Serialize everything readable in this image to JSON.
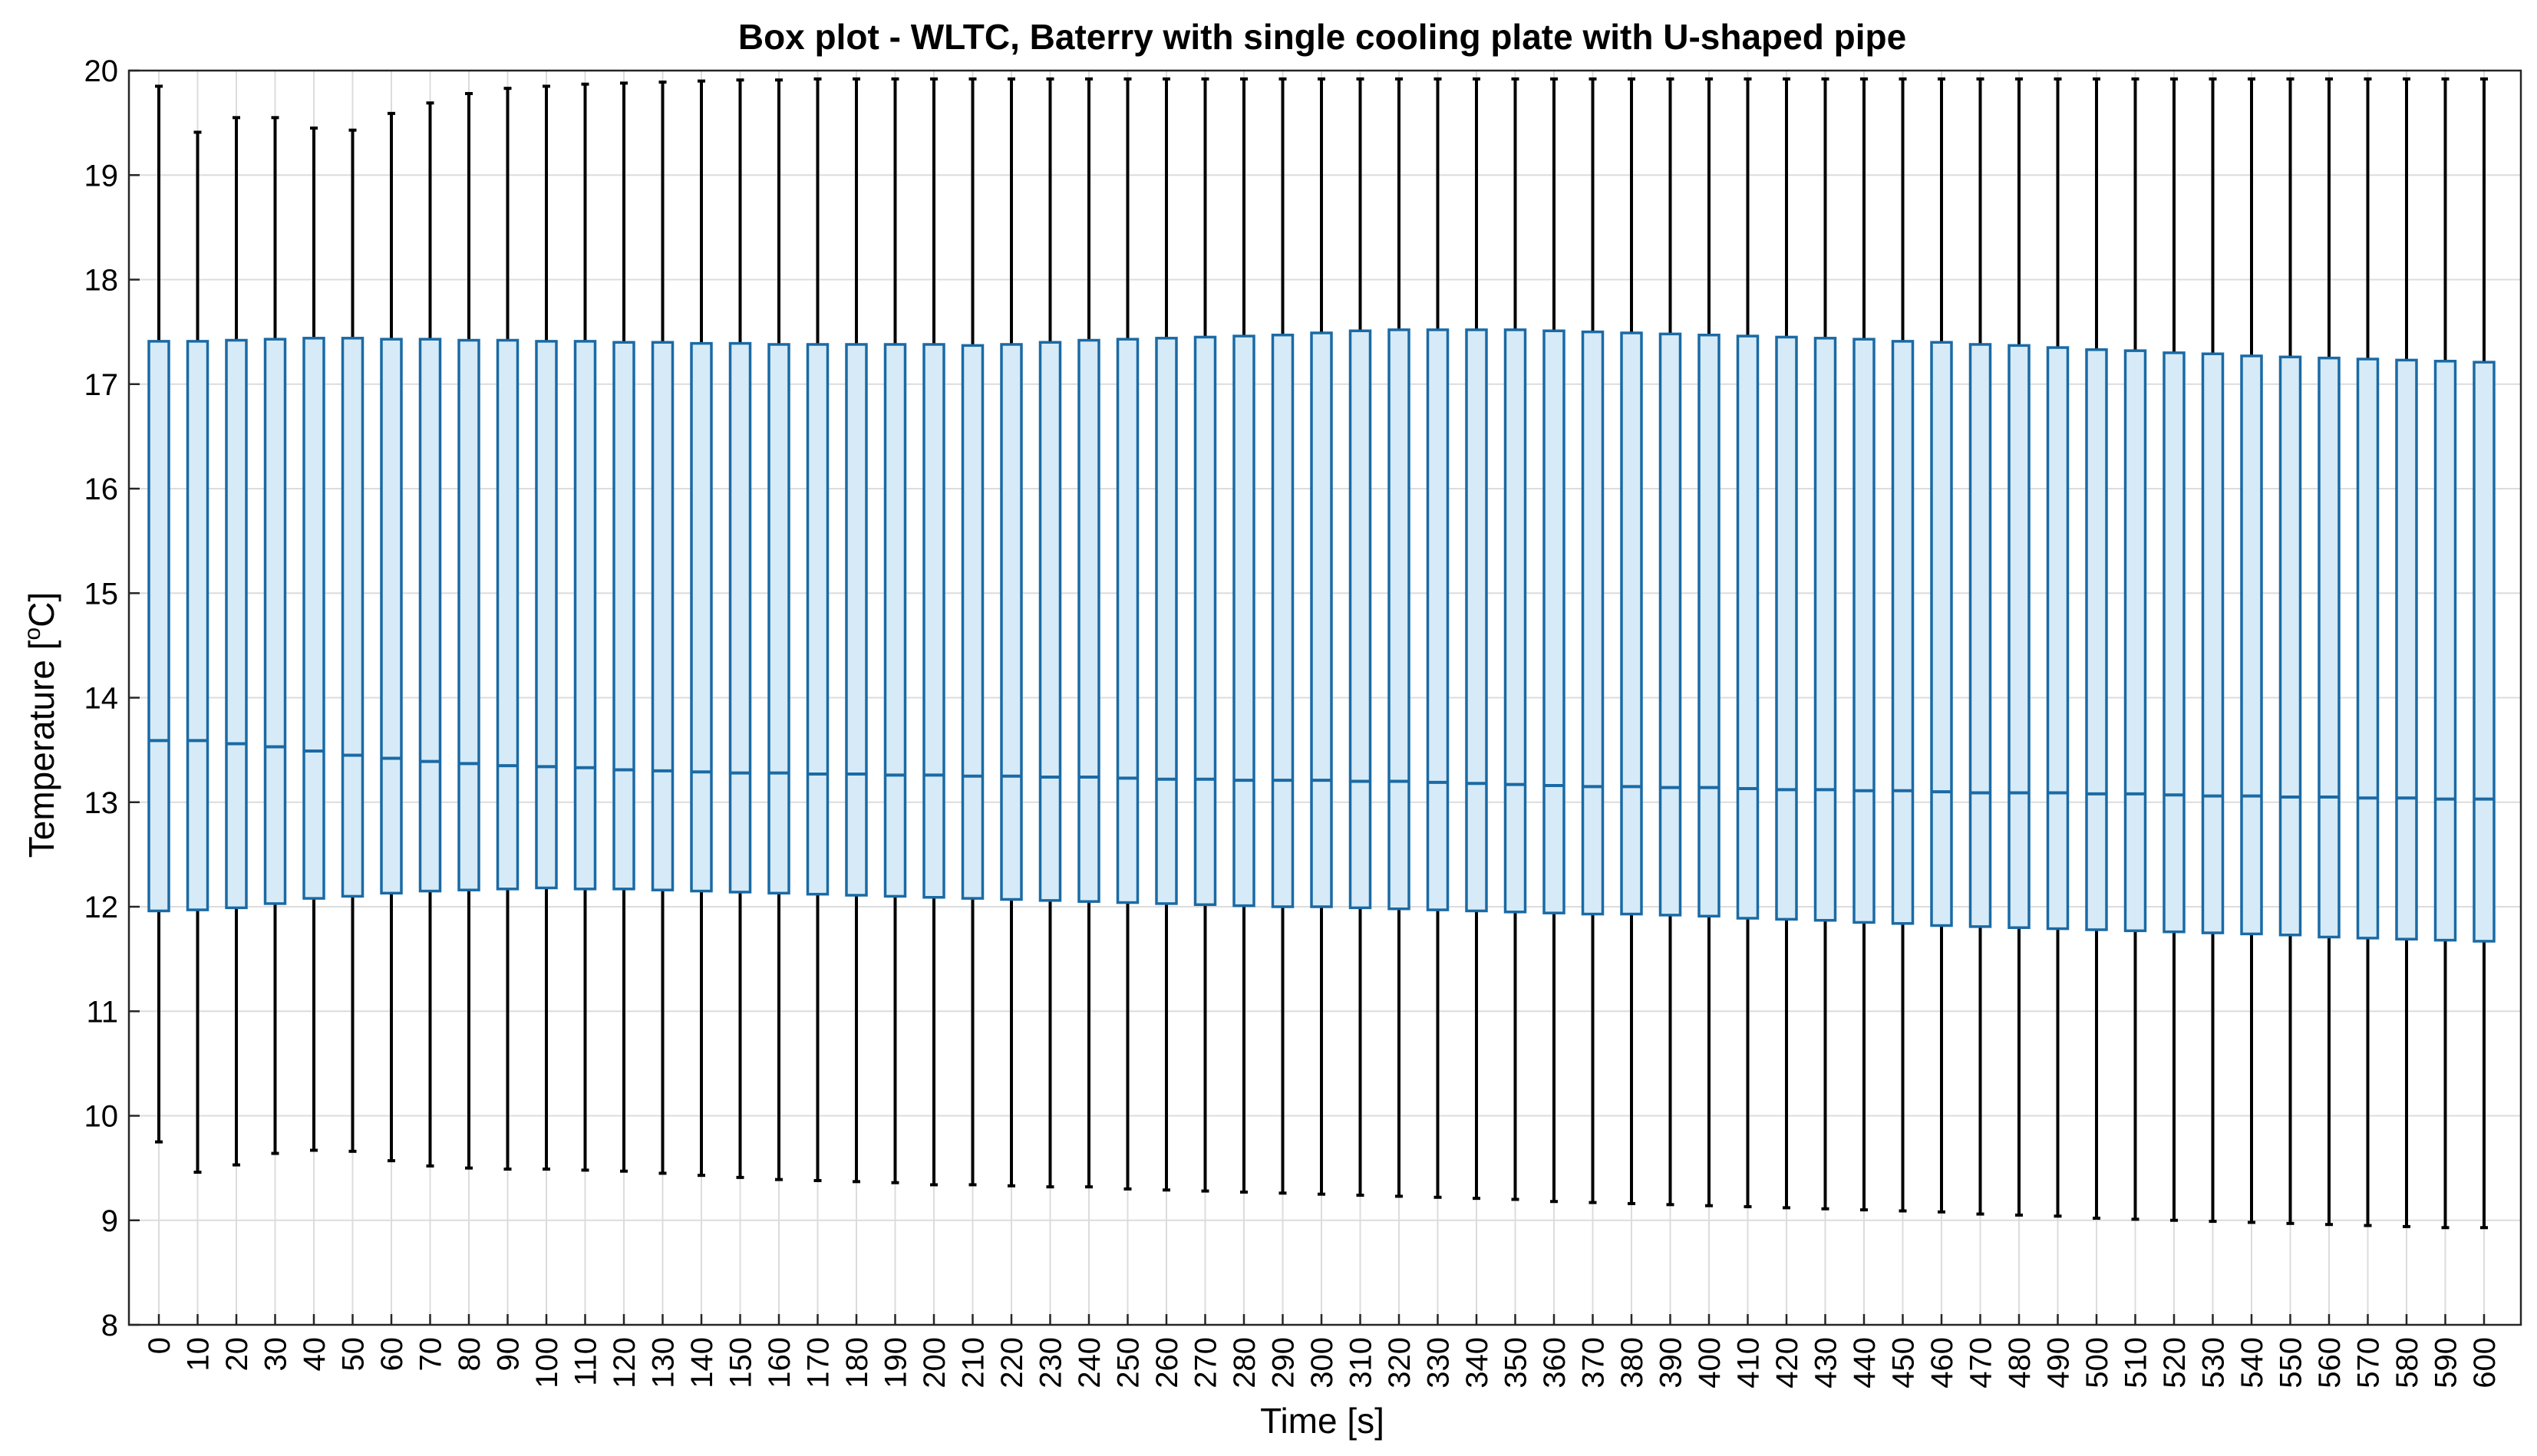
{
  "chart_data": {
    "type": "boxplot",
    "title": "Box plot - WLTC, Baterry with single cooling plate with U-shaped pipe",
    "xlabel": "Time [s]",
    "ylabel_main": "Temperature [",
    "ylabel_sup": "o",
    "ylabel_end": "C]",
    "ylim": [
      8,
      20
    ],
    "yticks": [
      8,
      9,
      10,
      11,
      12,
      13,
      14,
      15,
      16,
      17,
      18,
      19,
      20
    ],
    "grid": true,
    "colors": {
      "box_edge": "#1a6aa5",
      "box_fill": "#d6ebf7",
      "whisker": "#000000",
      "grid": "#dcdcdc"
    },
    "categories": [
      "0",
      "10",
      "20",
      "30",
      "40",
      "50",
      "60",
      "70",
      "80",
      "90",
      "100",
      "110",
      "120",
      "130",
      "140",
      "150",
      "160",
      "170",
      "180",
      "190",
      "200",
      "210",
      "220",
      "230",
      "240",
      "250",
      "260",
      "270",
      "280",
      "290",
      "300",
      "310",
      "320",
      "330",
      "340",
      "350",
      "360",
      "370",
      "380",
      "390",
      "400",
      "410",
      "420",
      "430",
      "440",
      "450",
      "460",
      "470",
      "480",
      "490",
      "500",
      "510",
      "520",
      "530",
      "540",
      "550",
      "560",
      "570",
      "580",
      "590",
      "600"
    ],
    "whisker_low": [
      9.75,
      9.46,
      9.53,
      9.64,
      9.67,
      9.66,
      9.57,
      9.52,
      9.5,
      9.49,
      9.49,
      9.48,
      9.47,
      9.45,
      9.43,
      9.41,
      9.39,
      9.38,
      9.37,
      9.36,
      9.34,
      9.34,
      9.33,
      9.32,
      9.32,
      9.3,
      9.29,
      9.28,
      9.27,
      9.26,
      9.25,
      9.24,
      9.23,
      9.22,
      9.21,
      9.2,
      9.18,
      9.17,
      9.16,
      9.15,
      9.14,
      9.13,
      9.12,
      9.11,
      9.1,
      9.09,
      9.08,
      9.06,
      9.05,
      9.04,
      9.02,
      9.01,
      9.0,
      8.99,
      8.98,
      8.97,
      8.96,
      8.95,
      8.94,
      8.93,
      8.93
    ],
    "q1": [
      11.96,
      11.97,
      11.99,
      12.03,
      12.08,
      12.1,
      12.13,
      12.15,
      12.16,
      12.17,
      12.18,
      12.17,
      12.17,
      12.16,
      12.15,
      12.14,
      12.13,
      12.12,
      12.11,
      12.1,
      12.09,
      12.08,
      12.07,
      12.06,
      12.05,
      12.04,
      12.03,
      12.02,
      12.01,
      12.0,
      12.0,
      11.99,
      11.98,
      11.97,
      11.96,
      11.95,
      11.94,
      11.93,
      11.93,
      11.92,
      11.91,
      11.89,
      11.88,
      11.87,
      11.85,
      11.84,
      11.82,
      11.81,
      11.8,
      11.79,
      11.78,
      11.77,
      11.76,
      11.75,
      11.74,
      11.73,
      11.71,
      11.7,
      11.69,
      11.68,
      11.67
    ],
    "median": [
      13.59,
      13.59,
      13.56,
      13.53,
      13.49,
      13.45,
      13.42,
      13.39,
      13.37,
      13.35,
      13.34,
      13.33,
      13.31,
      13.3,
      13.29,
      13.28,
      13.28,
      13.27,
      13.27,
      13.26,
      13.26,
      13.25,
      13.25,
      13.24,
      13.24,
      13.23,
      13.22,
      13.22,
      13.21,
      13.21,
      13.21,
      13.2,
      13.2,
      13.19,
      13.18,
      13.17,
      13.16,
      13.15,
      13.15,
      13.14,
      13.14,
      13.13,
      13.12,
      13.12,
      13.11,
      13.11,
      13.1,
      13.09,
      13.09,
      13.09,
      13.08,
      13.08,
      13.07,
      13.06,
      13.06,
      13.05,
      13.05,
      13.04,
      13.04,
      13.03,
      13.03
    ],
    "q3": [
      17.41,
      17.41,
      17.42,
      17.43,
      17.44,
      17.44,
      17.43,
      17.43,
      17.42,
      17.42,
      17.41,
      17.41,
      17.4,
      17.4,
      17.39,
      17.39,
      17.38,
      17.38,
      17.38,
      17.38,
      17.38,
      17.37,
      17.38,
      17.4,
      17.42,
      17.43,
      17.44,
      17.45,
      17.46,
      17.47,
      17.49,
      17.51,
      17.52,
      17.52,
      17.52,
      17.52,
      17.51,
      17.5,
      17.49,
      17.48,
      17.47,
      17.46,
      17.45,
      17.44,
      17.43,
      17.41,
      17.4,
      17.38,
      17.37,
      17.35,
      17.33,
      17.32,
      17.3,
      17.29,
      17.27,
      17.26,
      17.25,
      17.24,
      17.23,
      17.22,
      17.21
    ],
    "whisker_high": [
      19.85,
      19.41,
      19.55,
      19.55,
      19.45,
      19.43,
      19.59,
      19.69,
      19.78,
      19.83,
      19.85,
      19.87,
      19.88,
      19.89,
      19.9,
      19.91,
      19.91,
      19.92,
      19.92,
      19.92,
      19.92,
      19.92,
      19.92,
      19.92,
      19.92,
      19.92,
      19.92,
      19.92,
      19.92,
      19.92,
      19.92,
      19.92,
      19.92,
      19.92,
      19.92,
      19.92,
      19.92,
      19.92,
      19.92,
      19.92,
      19.92,
      19.92,
      19.92,
      19.92,
      19.92,
      19.92,
      19.92,
      19.92,
      19.92,
      19.92,
      19.92,
      19.92,
      19.92,
      19.92,
      19.92,
      19.92,
      19.92,
      19.92,
      19.92,
      19.92,
      19.92
    ]
  }
}
